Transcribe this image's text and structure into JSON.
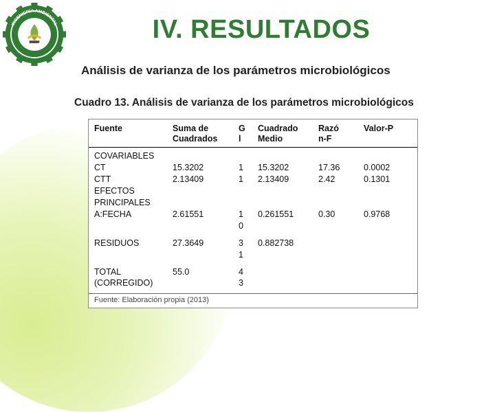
{
  "title": "IV. RESULTADOS",
  "subtitle": "Análisis de varianza de los parámetros microbiológicos",
  "table_caption": "Cuadro 13. Análisis de varianza de los parámetros microbiológicos",
  "logo": {
    "top_text": "INGENIERÍA AMBIENTAL",
    "bottom_text": "UNAS",
    "gear_color": "#2e7d32",
    "ring_color": "#ffffff"
  },
  "table": {
    "headers": {
      "c0": "Fuente",
      "c1": "Suma de\nCuadrados",
      "c2": "G\nl",
      "c3": "Cuadrado\nMedio",
      "c4": "Razó\nn-F",
      "c5": "Valor-P"
    },
    "rows": [
      {
        "c0": "COVARIABLES",
        "c1": "",
        "c2": "",
        "c3": "",
        "c4": "",
        "c5": ""
      },
      {
        "c0": "CT",
        "c1": "15.3202",
        "c2": "1",
        "c3": "15.3202",
        "c4": "17.36",
        "c5": "0.0002"
      },
      {
        "c0": "CTT",
        "c1": "2.13409",
        "c2": "1",
        "c3": "2.13409",
        "c4": "2.42",
        "c5": "0.1301"
      },
      {
        "c0": "EFECTOS",
        "c1": "",
        "c2": "",
        "c3": "",
        "c4": "",
        "c5": ""
      },
      {
        "c0": "PRINCIPALES",
        "c1": "",
        "c2": "",
        "c3": "",
        "c4": "",
        "c5": ""
      },
      {
        "c0": "A:FECHA",
        "c1": "2.61551",
        "c2": "1\n0",
        "c3": "0.261551",
        "c4": "0.30",
        "c5": "0.9768"
      },
      {
        "c0": "RESIDUOS",
        "c1": "27.3649",
        "c2": "3\n1",
        "c3": "0.882738",
        "c4": "",
        "c5": ""
      },
      {
        "c0": "TOTAL\n(CORREGIDO)",
        "c1": "55.0",
        "c2": "4\n3",
        "c3": "",
        "c4": "",
        "c5": ""
      }
    ],
    "source": "Fuente: Elaboración propia (2013)"
  },
  "colors": {
    "title": "#2e7d32",
    "text": "#222222",
    "table_border": "#888888",
    "table_header_rule": "#000000"
  }
}
